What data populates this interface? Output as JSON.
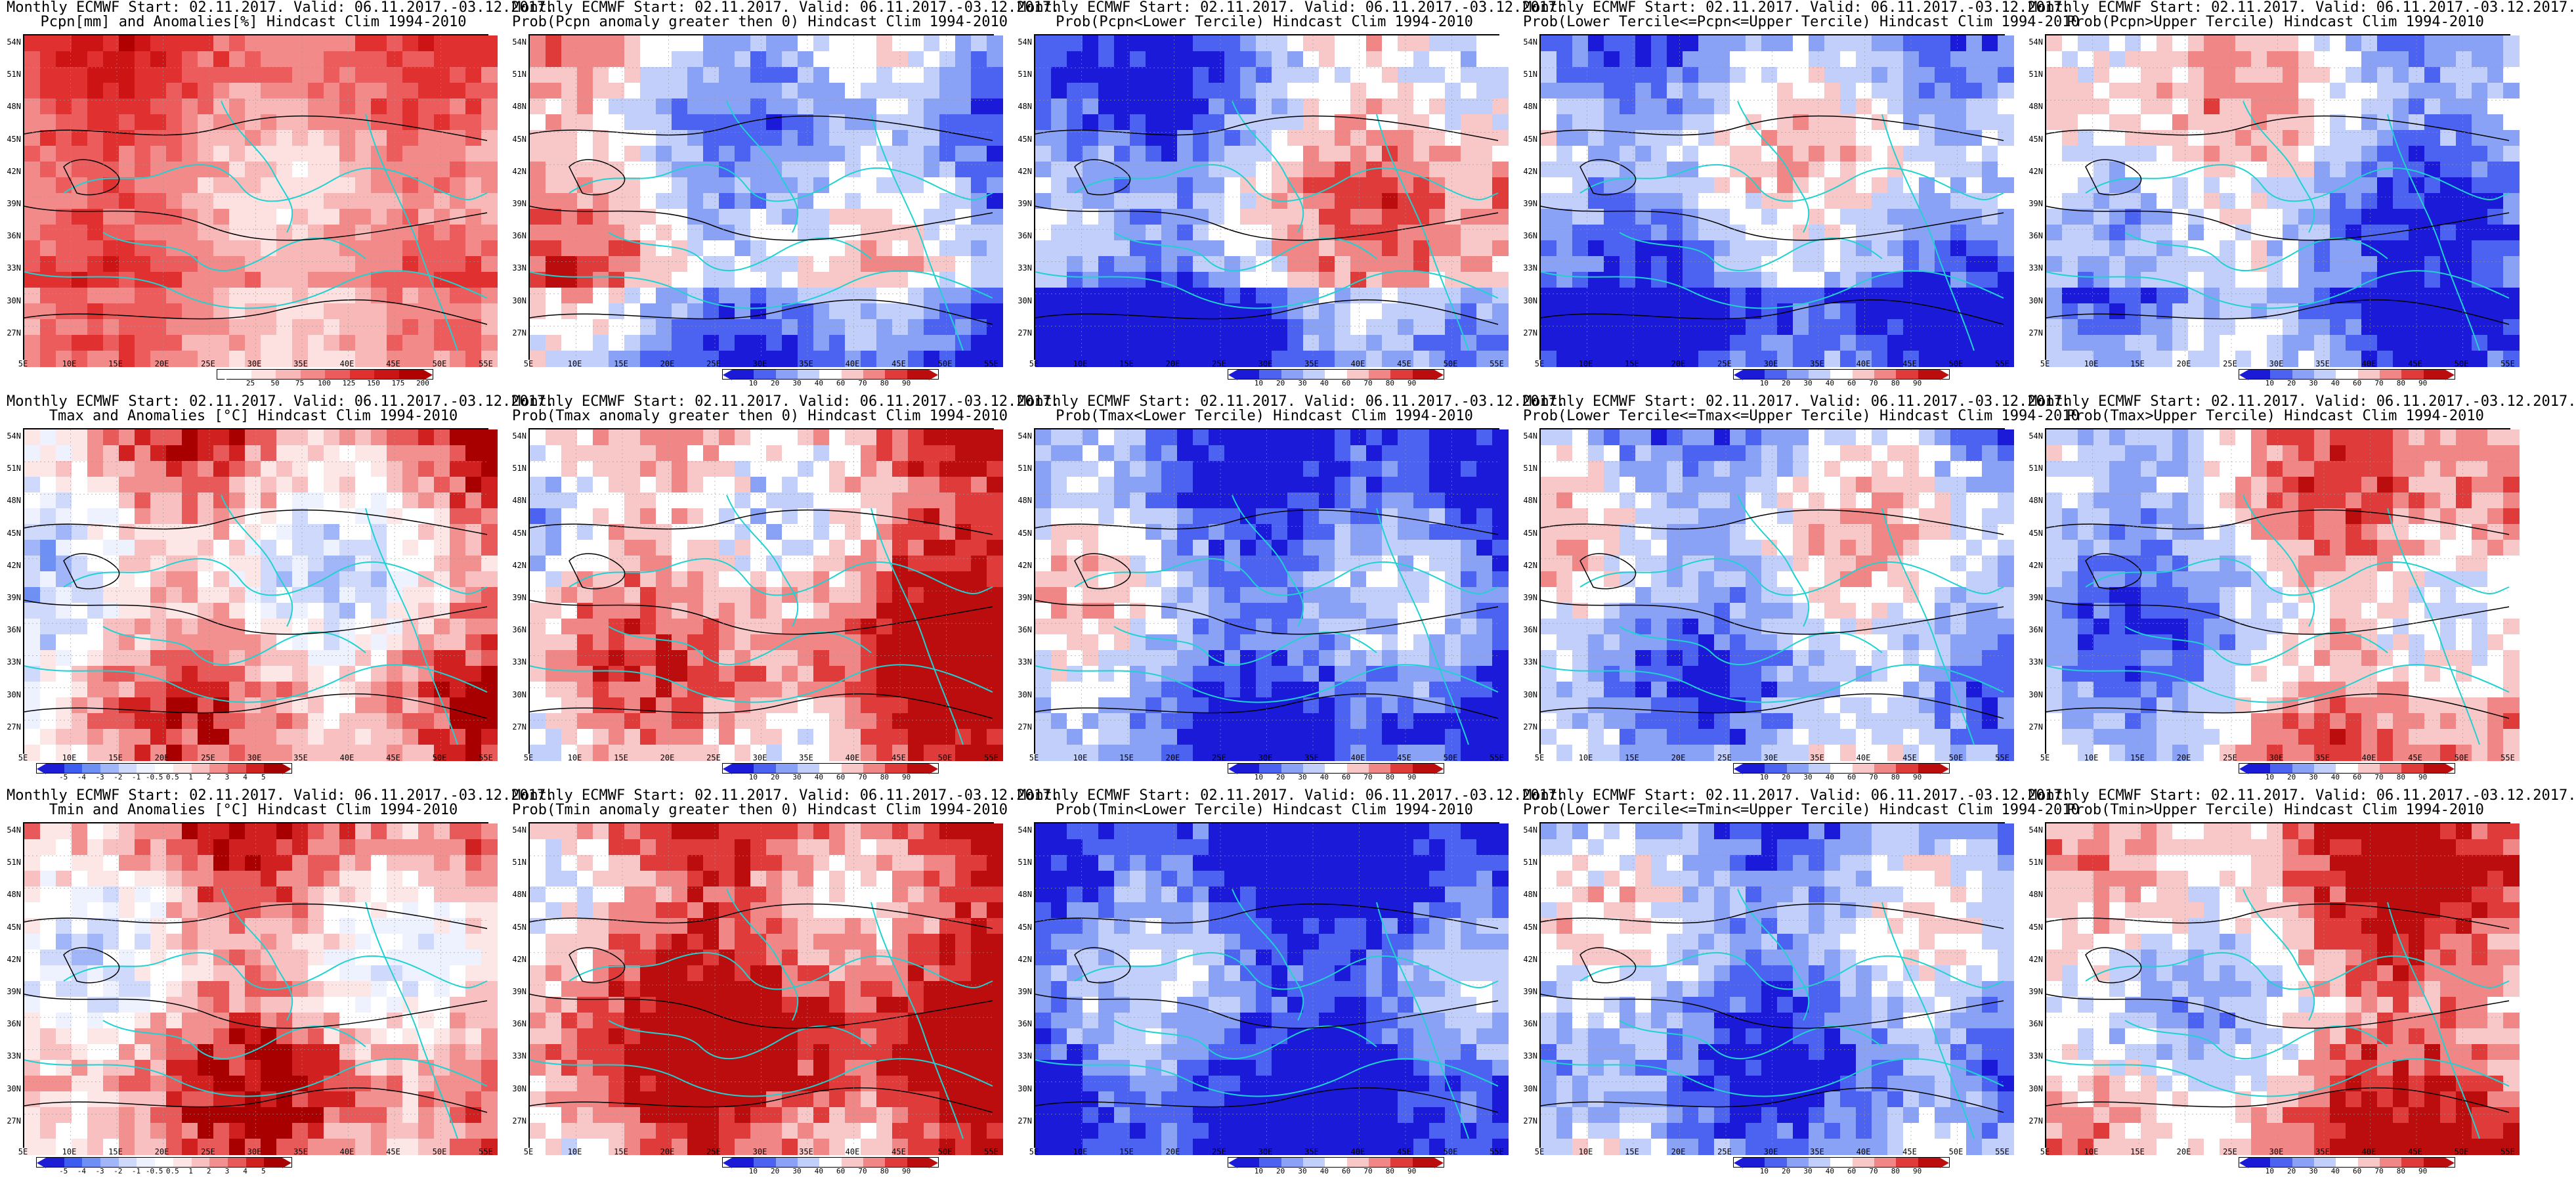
{
  "colors": {
    "anom": [
      "#1d1dd6",
      "#3d5cf0",
      "#6e8ff4",
      "#a1b6f8",
      "#ced9fb",
      "#ffffff",
      "#ffffff",
      "#fbd4d4",
      "#f6a5a5",
      "#f06e6e",
      "#e53030",
      "#c31010"
    ],
    "prob": [
      "#1a1ad8",
      "#4b63f0",
      "#8aa2f6",
      "#c1cffa",
      "#ffffff",
      "#ffffff",
      "#f8c7c7",
      "#f08686",
      "#e03b3b",
      "#bb0d0d"
    ],
    "contour": "#000000",
    "coast": "#1fd2d2"
  },
  "axes": {
    "lat": [
      "54N",
      "51N",
      "48N",
      "45N",
      "42N",
      "39N",
      "36N",
      "33N",
      "30N",
      "27N"
    ],
    "lon": [
      "5E",
      "10E",
      "15E",
      "20E",
      "25E",
      "30E",
      "35E",
      "40E",
      "45E",
      "50E",
      "55E"
    ]
  },
  "panels": [
    {
      "title1": "Monthly ECMWF Start: 02.11.2017. Valid: 06.11.2017.-03.12.2017.",
      "title2": "Pcpn[mm] and Anomalies[%] Hindcast Clim 1994-2010",
      "scale": "pcpn",
      "field": "pcpn_anom"
    },
    {
      "title1": "Monthly ECMWF Start: 02.11.2017. Valid: 06.11.2017.-03.12.2017.",
      "title2": "Prob(Pcpn anomaly greater then 0) Hindcast Clim 1994-2010",
      "scale": "prob",
      "field": "pcpn_pos"
    },
    {
      "title1": "Monthly ECMWF Start: 02.11.2017. Valid: 06.11.2017.-03.12.2017.",
      "title2": "Prob(Pcpn<Lower Tercile) Hindcast Clim 1994-2010",
      "scale": "prob",
      "field": "pcpn_low"
    },
    {
      "title1": "Monthly ECMWF Start: 02.11.2017. Valid: 06.11.2017.-03.12.2017.",
      "title2": "Prob(Lower Tercile<=Pcpn<=Upper Tercile) Hindcast Clim 1994-2010",
      "scale": "prob",
      "field": "pcpn_mid"
    },
    {
      "title1": "Monthly ECMWF Start: 02.11.2017. Valid: 06.11.2017.-03.12.2017.",
      "title2": "Prob(Pcpn>Upper Tercile) Hindcast Clim 1994-2010",
      "scale": "prob",
      "field": "pcpn_up"
    },
    {
      "title1": "Monthly ECMWF Start: 02.11.2017. Valid: 06.11.2017.-03.12.2017.",
      "title2": "Tmax and Anomalies [°C] Hindcast Clim 1994-2010",
      "scale": "temp",
      "field": "tmax_anom"
    },
    {
      "title1": "Monthly ECMWF Start: 02.11.2017. Valid: 06.11.2017.-03.12.2017.",
      "title2": "Prob(Tmax anomaly greater then 0) Hindcast Clim 1994-2010",
      "scale": "prob",
      "field": "tmax_pos"
    },
    {
      "title1": "Monthly ECMWF Start: 02.11.2017. Valid: 06.11.2017.-03.12.2017.",
      "title2": "Prob(Tmax<Lower Tercile) Hindcast Clim 1994-2010",
      "scale": "prob",
      "field": "tmax_low"
    },
    {
      "title1": "Monthly ECMWF Start: 02.11.2017. Valid: 06.11.2017.-03.12.2017.",
      "title2": "Prob(Lower Tercile<=Tmax<=Upper Tercile) Hindcast Clim 1994-2010",
      "scale": "prob",
      "field": "tmax_mid"
    },
    {
      "title1": "Monthly ECMWF Start: 02.11.2017. Valid: 06.11.2017.-03.12.2017.",
      "title2": "Prob(Tmax>Upper Tercile) Hindcast Clim 1994-2010",
      "scale": "prob",
      "field": "tmax_up"
    },
    {
      "title1": "Monthly ECMWF Start: 02.11.2017. Valid: 06.11.2017.-03.12.2017.",
      "title2": "Tmin and Anomalies [°C] Hindcast Clim 1994-2010",
      "scale": "temp",
      "field": "tmin_anom"
    },
    {
      "title1": "Monthly ECMWF Start: 02.11.2017. Valid: 06.11.2017.-03.12.2017.",
      "title2": "Prob(Tmin anomaly greater then 0) Hindcast Clim 1994-2010",
      "scale": "prob",
      "field": "tmin_pos"
    },
    {
      "title1": "Monthly ECMWF Start: 02.11.2017. Valid: 06.11.2017.-03.12.2017.",
      "title2": "Prob(Tmin<Lower Tercile) Hindcast Clim 1994-2010",
      "scale": "prob",
      "field": "tmin_low"
    },
    {
      "title1": "Monthly ECMWF Start: 02.11.2017. Valid: 06.11.2017.-03.12.2017.",
      "title2": "Prob(Lower Tercile<=Tmin<=Upper Tercile) Hindcast Clim 1994-2010",
      "scale": "prob",
      "field": "tmin_mid"
    },
    {
      "title1": "Monthly ECMWF Start: 02.11.2017. Valid: 06.11.2017.-03.12.2017.",
      "title2": "Prob(Tmin>Upper Tercile) Hindcast Clim 1994-2010",
      "scale": "prob",
      "field": "tmin_up"
    }
  ],
  "scales": {
    "pcpn": {
      "ticks": [
        "25",
        "50",
        "75",
        "100",
        "125",
        "150",
        "175",
        "200"
      ],
      "colors": [
        "#ffffff",
        "#fde0e0",
        "#f8b8b8",
        "#f28a8a",
        "#ec5c5c",
        "#e03030",
        "#cc1414",
        "#b00000"
      ]
    },
    "prob": {
      "ticks": [
        "10",
        "20",
        "30",
        "40",
        "60",
        "70",
        "80",
        "90"
      ],
      "colors": [
        "#1a1ad8",
        "#4b63f0",
        "#8aa2f6",
        "#c1cffa",
        "#ffffff",
        "#f8c7c7",
        "#f08686",
        "#e03b3b",
        "#bb0d0d"
      ]
    },
    "temp": {
      "ticks": [
        "-5",
        "-4",
        "-3",
        "-2",
        "-1",
        "-0.5",
        "0.5",
        "1",
        "2",
        "3",
        "4",
        "5"
      ],
      "colors": [
        "#1d1dd6",
        "#3d5cf0",
        "#6e8ff4",
        "#a1b6f8",
        "#ced9fb",
        "#eef2fe",
        "#ffffff",
        "#fde6e6",
        "#f8c0c0",
        "#f29090",
        "#e85a5a",
        "#d02020",
        "#a80000"
      ]
    }
  }
}
